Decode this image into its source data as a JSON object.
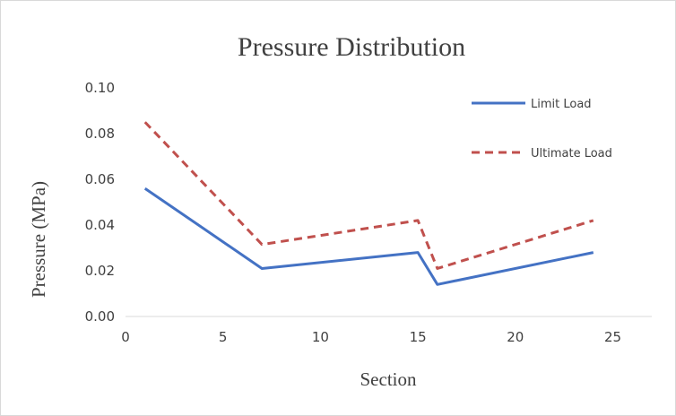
{
  "chart_data": {
    "type": "line",
    "title": "Pressure Distribution",
    "xlabel": "Section",
    "ylabel": "Pressure (MPa)",
    "xlim": [
      0,
      27
    ],
    "ylim": [
      0,
      0.1
    ],
    "xticks": [
      "0",
      "5",
      "10",
      "15",
      "20",
      "25"
    ],
    "xtick_values": [
      0,
      5,
      10,
      15,
      20,
      25
    ],
    "yticks": [
      "0.00",
      "0.02",
      "0.04",
      "0.06",
      "0.08",
      "0.10"
    ],
    "ytick_values": [
      0,
      0.02,
      0.04,
      0.06,
      0.08,
      0.1
    ],
    "grid": false,
    "legend_position": "top-right",
    "series": [
      {
        "name": "Limit Load",
        "color": "#4472c4",
        "style": "solid",
        "x": [
          1,
          7,
          15,
          16,
          24
        ],
        "y": [
          0.056,
          0.021,
          0.028,
          0.014,
          0.028
        ]
      },
      {
        "name": "Ultimate Load",
        "color": "#c0504d",
        "style": "dashed",
        "x": [
          1,
          7,
          15,
          16,
          24
        ],
        "y": [
          0.085,
          0.0315,
          0.042,
          0.021,
          0.042
        ]
      }
    ]
  }
}
